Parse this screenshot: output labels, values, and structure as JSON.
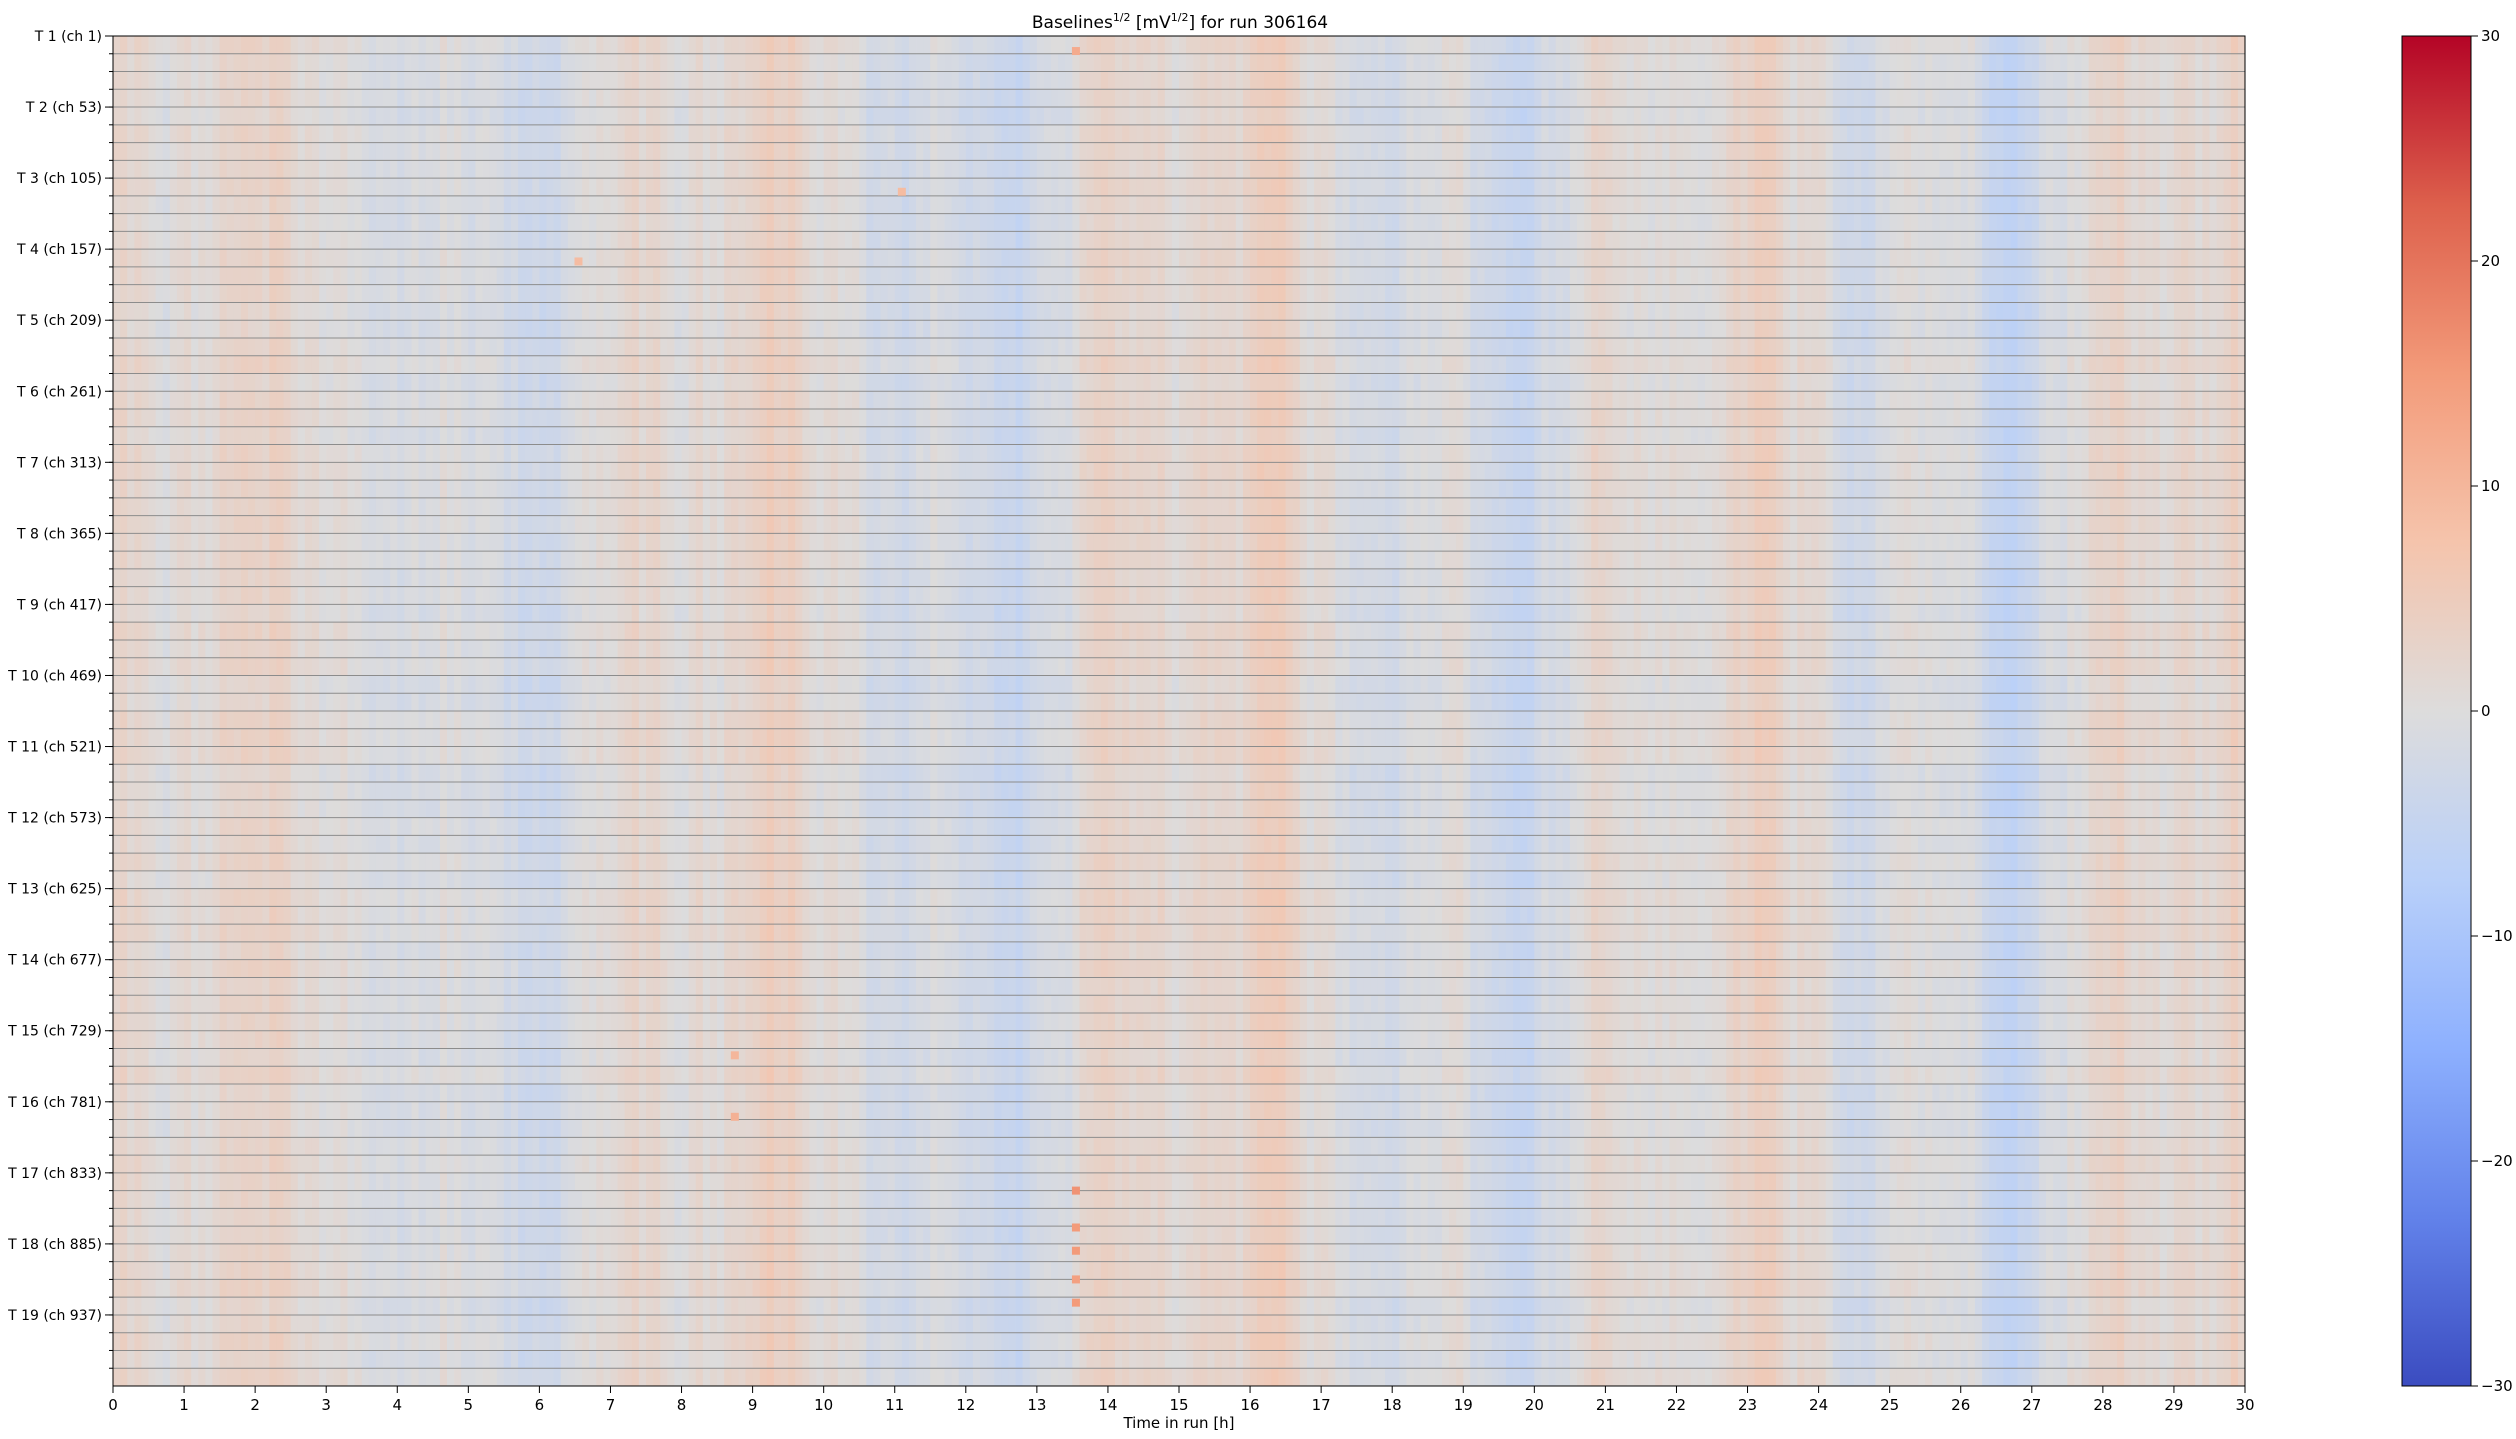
{
  "chart_data": {
    "type": "heatmap",
    "title": "Baselines^{1/2} [mV^{1/2}] for run 306164",
    "title_parts": {
      "base": "Baselines",
      "exp1": "1/2",
      "mid": " [mV",
      "exp2": "1/2",
      "tail": "] for run 306164"
    },
    "xlabel": "Time in run [h]",
    "xlim": [
      0,
      30
    ],
    "x_ticks": [
      0,
      1,
      2,
      3,
      4,
      5,
      6,
      7,
      8,
      9,
      10,
      11,
      12,
      13,
      14,
      15,
      16,
      17,
      18,
      19,
      20,
      21,
      22,
      23,
      24,
      25,
      26,
      27,
      28,
      29,
      30
    ],
    "y_ticks": [
      "T 1 (ch 1)",
      "T 2 (ch 53)",
      "T 3 (ch 105)",
      "T 4 (ch 157)",
      "T 5 (ch 209)",
      "T 6 (ch 261)",
      "T 7 (ch 313)",
      "T 8 (ch 365)",
      "T 9 (ch 417)",
      "T 10 (ch 469)",
      "T 11 (ch 521)",
      "T 12 (ch 573)",
      "T 13 (ch 625)",
      "T 14 (ch 677)",
      "T 15 (ch 729)",
      "T 16 (ch 781)",
      "T 17 (ch 833)",
      "T 18 (ch 885)",
      "T 19 (ch 937)"
    ],
    "channel_range": [
      1,
      988
    ],
    "channel_rows": 76,
    "colormap": "coolwarm",
    "colorbar": {
      "vmin": -30,
      "vmax": 30,
      "ticks": [
        -30,
        -20,
        -10,
        0,
        10,
        20,
        30
      ],
      "tick_labels": [
        "−30",
        "−20",
        "−10",
        "0",
        "10",
        "20",
        "30"
      ]
    },
    "grid": "horizontal lines between channel rows",
    "value_range_typical": [
      -6,
      6
    ],
    "hot_spots": [
      {
        "time_h": 13.55,
        "channel": 12,
        "value": 12
      },
      {
        "time_h": 13.55,
        "channel": 846,
        "value": 16
      },
      {
        "time_h": 13.55,
        "channel": 873,
        "value": 15
      },
      {
        "time_h": 13.55,
        "channel": 890,
        "value": 15
      },
      {
        "time_h": 13.55,
        "channel": 911,
        "value": 14
      },
      {
        "time_h": 13.55,
        "channel": 928,
        "value": 15
      },
      {
        "time_h": 8.75,
        "channel": 747,
        "value": 10
      },
      {
        "time_h": 8.75,
        "channel": 792,
        "value": 11
      },
      {
        "time_h": 11.1,
        "channel": 115,
        "value": 9
      },
      {
        "time_h": 6.55,
        "channel": 166,
        "value": 9
      }
    ],
    "colors": {
      "cold": "#3b4cc0",
      "neutral": "#dddcdc",
      "hot": "#b40426",
      "grid_line": "#8c8c8c"
    }
  }
}
